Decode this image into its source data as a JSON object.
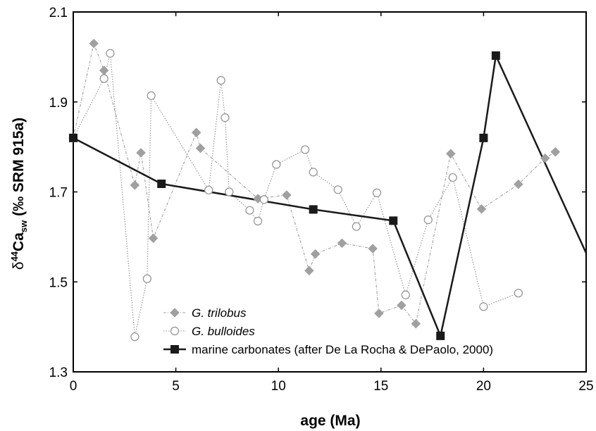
{
  "chart_data": {
    "type": "line",
    "xlabel": "age (Ma)",
    "ylabel": {
      "prefix": "δ",
      "sup": "44",
      "main": "Ca",
      "sub": "sw",
      "suffix": " (‰ SRM 915a)"
    },
    "xlim": [
      0,
      25
    ],
    "ylim": [
      1.3,
      2.1
    ],
    "xticks": [
      0,
      5,
      10,
      15,
      20,
      25
    ],
    "yticks": [
      1.3,
      1.5,
      1.7,
      1.9,
      2.1
    ],
    "xtick_labels": [
      "0",
      "5",
      "10",
      "15",
      "20",
      "25"
    ],
    "ytick_labels": [
      "1.3",
      "1.5",
      "1.7",
      "1.9",
      "2.1"
    ],
    "grid": false,
    "legend_position": "bottom-left",
    "series": [
      {
        "name": "G. trilobus",
        "legend_italic": "G.",
        "legend_rest": " trilobus",
        "color": "#a0a0a0",
        "marker": "diamond",
        "line_style": "dash-dot",
        "x": [
          0.0,
          1.0,
          1.5,
          3.0,
          3.3,
          3.9,
          6.0,
          6.2,
          9.0,
          10.4,
          11.5,
          11.8,
          13.1,
          14.6,
          14.9,
          16.0,
          16.7,
          18.4,
          19.9,
          21.7,
          23.0,
          23.5
        ],
        "y": [
          1.82,
          2.03,
          1.97,
          1.715,
          1.787,
          1.597,
          1.832,
          1.797,
          1.685,
          1.693,
          1.525,
          1.562,
          1.586,
          1.574,
          1.43,
          1.448,
          1.407,
          1.785,
          1.662,
          1.717,
          1.775,
          1.789
        ]
      },
      {
        "name": "G. bulloides",
        "legend_italic": "G.",
        "legend_rest": " bulloides",
        "color": "#909090",
        "marker": "open-circle",
        "line_style": "dotted",
        "x": [
          0.0,
          1.5,
          1.8,
          3.0,
          3.6,
          3.8,
          6.6,
          7.2,
          7.4,
          7.6,
          8.6,
          9.0,
          9.3,
          9.9,
          11.3,
          11.7,
          12.9,
          13.8,
          14.8,
          16.2,
          17.3,
          18.5,
          20.0,
          21.7
        ],
        "y": [
          1.82,
          1.952,
          2.008,
          1.378,
          1.507,
          1.914,
          1.704,
          1.948,
          1.865,
          1.7,
          1.659,
          1.635,
          1.683,
          1.761,
          1.794,
          1.744,
          1.705,
          1.623,
          1.698,
          1.471,
          1.638,
          1.732,
          1.445,
          1.475
        ]
      },
      {
        "name": "marine carbonates (after De La Rocha & DePaolo, 2000)",
        "legend_italic": "",
        "legend_rest": "marine carbonates (after De La Rocha & DePaolo, 2000)",
        "color": "#1a1a1a",
        "marker": "filled-square",
        "line_style": "solid",
        "x": [
          0.0,
          4.3,
          11.7,
          15.6,
          17.9,
          20.0,
          20.6,
          25.0
        ],
        "y": [
          1.82,
          1.718,
          1.661,
          1.636,
          1.38,
          1.82,
          2.003,
          1.564
        ],
        "marker_mask": [
          true,
          true,
          true,
          true,
          true,
          true,
          true,
          false
        ]
      }
    ]
  }
}
